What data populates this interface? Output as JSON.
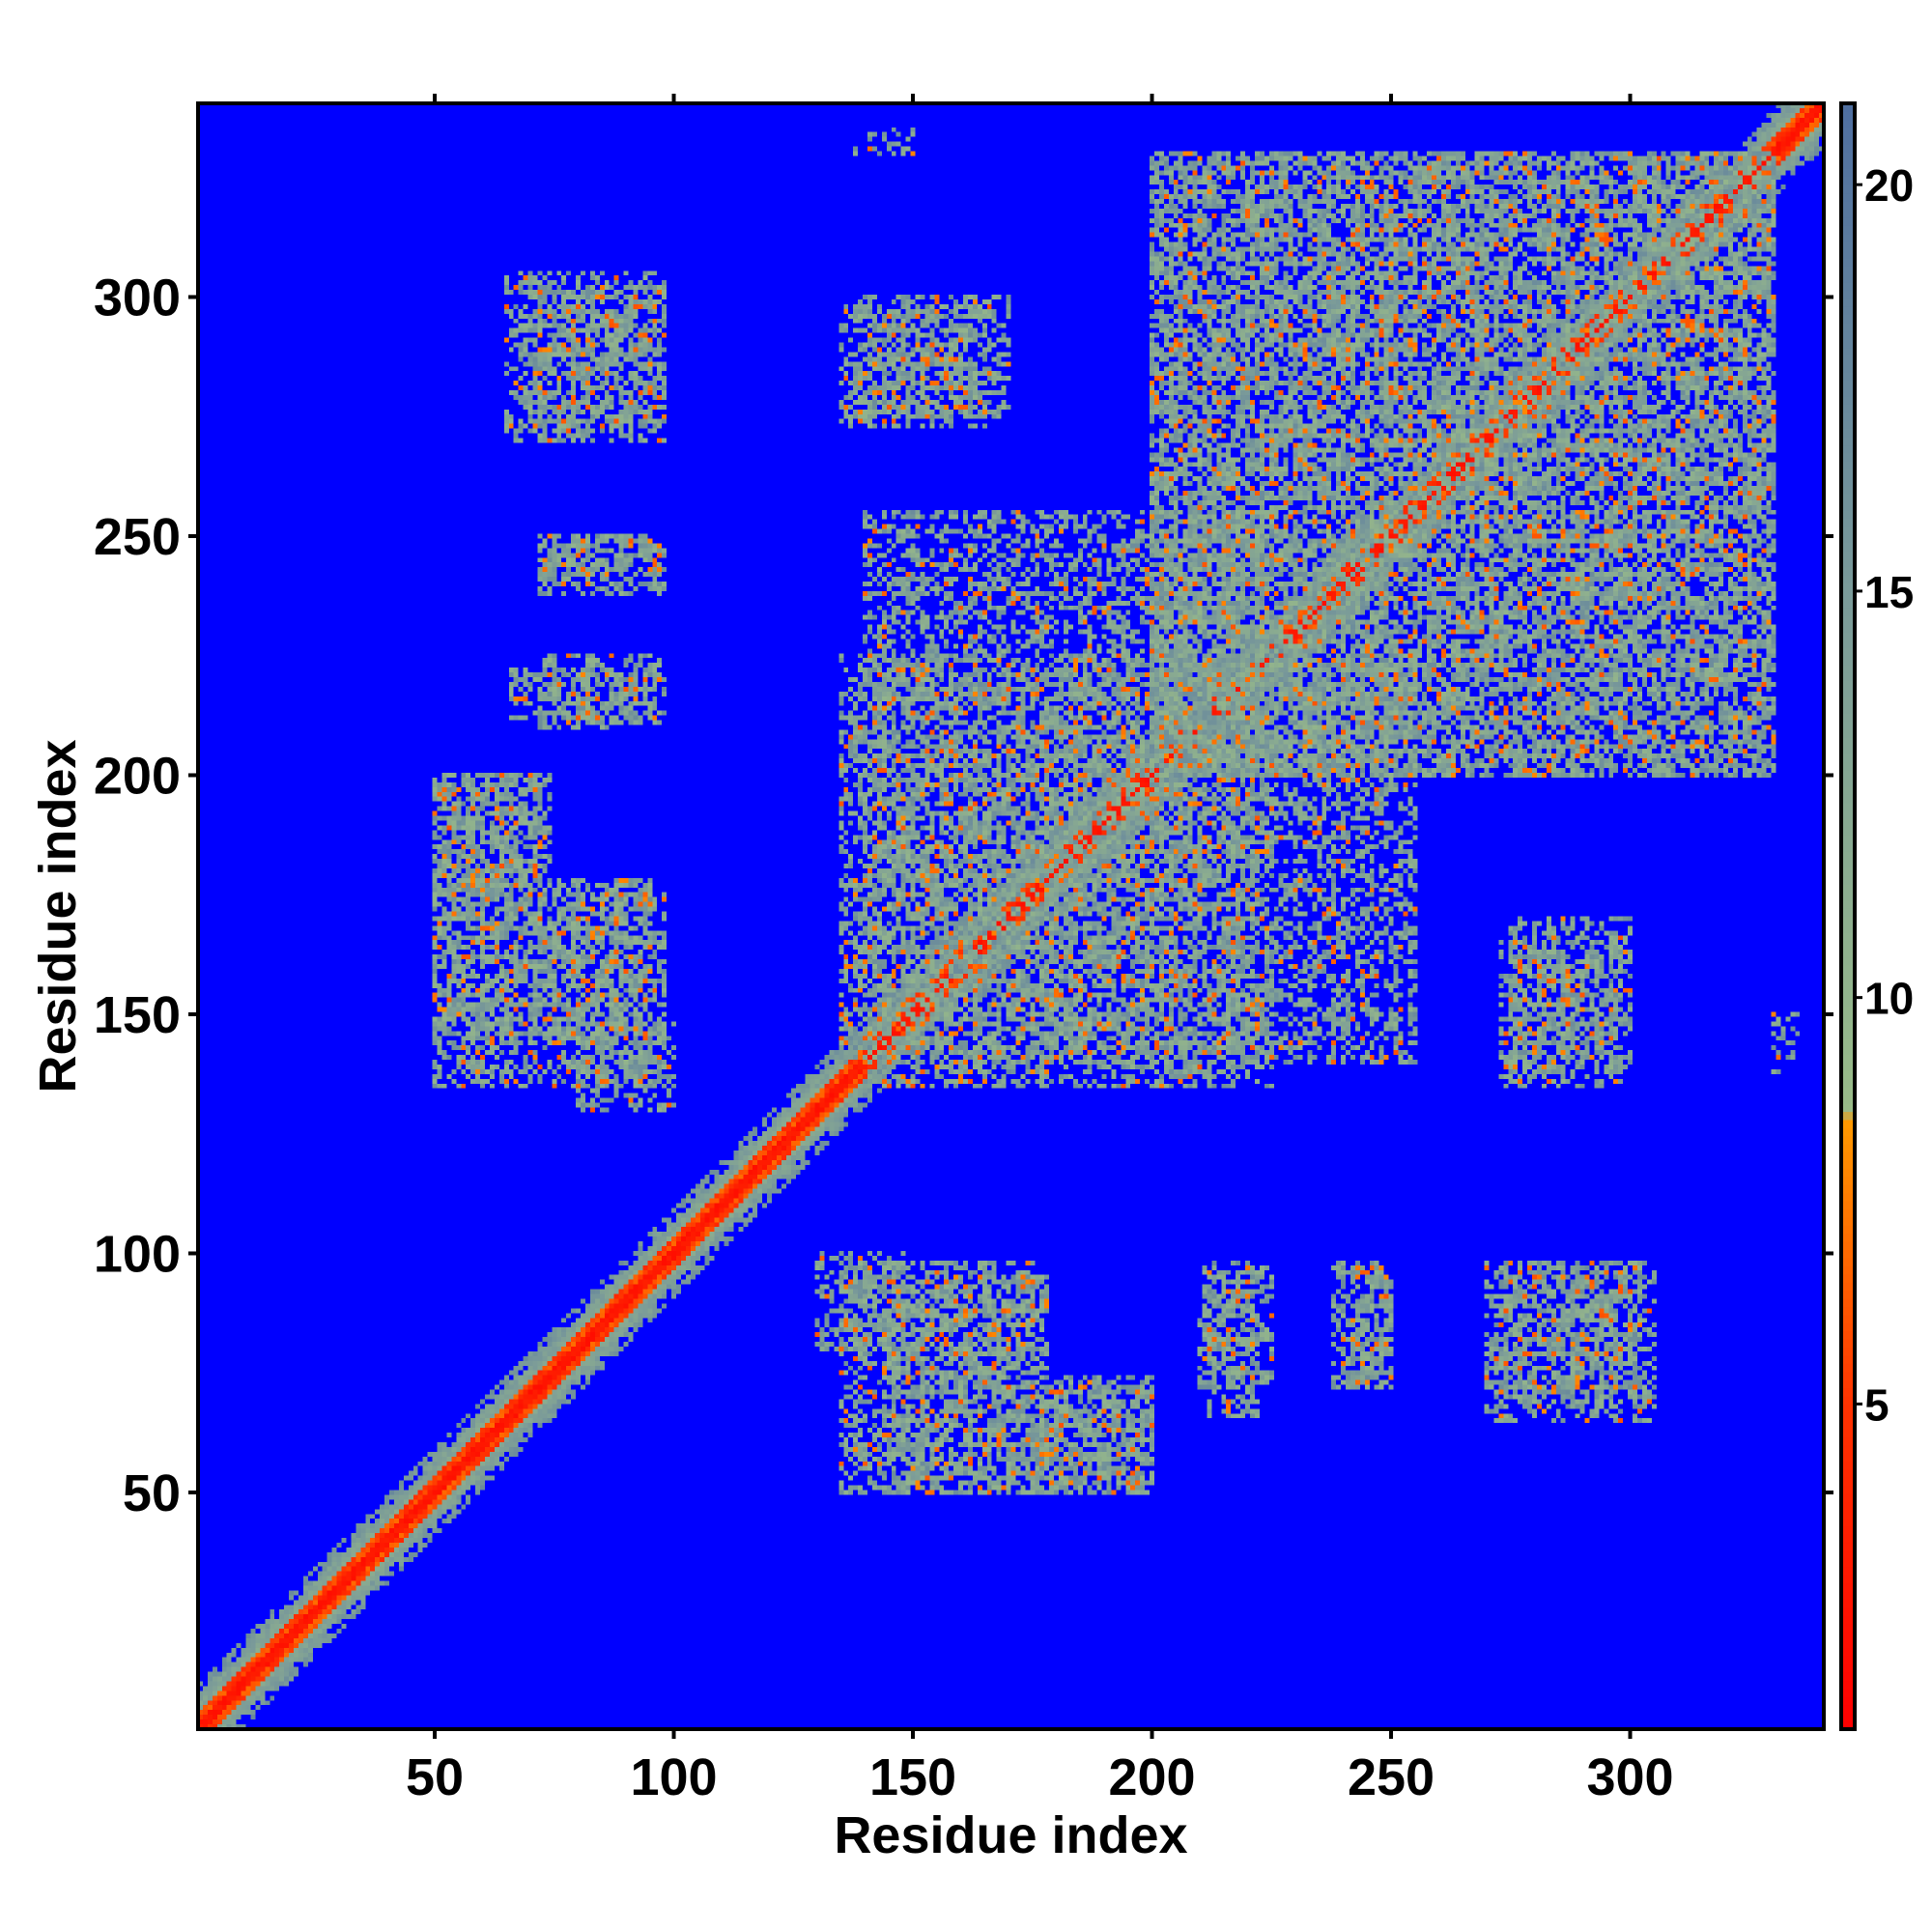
{
  "chart_data": {
    "type": "heatmap",
    "title": "",
    "xlabel": "Residue index",
    "ylabel": "Residue index",
    "n_residues": 340,
    "xlim": [
      1,
      340
    ],
    "ylim": [
      1,
      340
    ],
    "x_ticks": [
      50,
      100,
      150,
      200,
      250,
      300
    ],
    "y_ticks": [
      50,
      100,
      150,
      200,
      250,
      300
    ],
    "colorbar": {
      "ticks": [
        5,
        10,
        15,
        20
      ],
      "range": [
        1,
        21
      ],
      "stops": [
        {
          "value": 1,
          "color": "#ff0000"
        },
        {
          "value": 5,
          "color": "#ff3300"
        },
        {
          "value": 8.5,
          "color": "#ff9900"
        },
        {
          "value": 8.6,
          "color": "#99bb88"
        },
        {
          "value": 15,
          "color": "#7a9a99"
        },
        {
          "value": 21,
          "color": "#4f6fa0"
        }
      ]
    },
    "background_color": "#0000ff",
    "cutoff": 16,
    "contact_regions": [
      {
        "x": [
          1,
          340
        ],
        "y": [
          1,
          340
        ],
        "note": "main diagonal band"
      },
      {
        "x": [
          70,
          98
        ],
        "y": [
          272,
          302
        ]
      },
      {
        "x": [
          72,
          98
        ],
        "y": [
          238,
          250
        ]
      },
      {
        "x": [
          66,
          98
        ],
        "y": [
          212,
          222
        ]
      },
      {
        "x": [
          50,
          74
        ],
        "y": [
          176,
          200
        ]
      },
      {
        "x": [
          50,
          95
        ],
        "y": [
          144,
          178
        ]
      },
      {
        "x": [
          80,
          100
        ],
        "y": [
          130,
          148
        ]
      },
      {
        "x": [
          135,
          165
        ],
        "y": [
          273,
          298
        ]
      },
      {
        "x": [
          140,
          225
        ],
        "y": [
          135,
          255
        ]
      },
      {
        "x": [
          200,
          330
        ],
        "y": [
          200,
          330
        ]
      },
      {
        "x": [
          135,
          175
        ],
        "y": [
          50,
          98
        ]
      },
      {
        "x": [
          175,
          200
        ],
        "y": [
          50,
          72
        ]
      },
      {
        "x": [
          210,
          225
        ],
        "y": [
          72,
          97
        ]
      },
      {
        "x": [
          240,
          250
        ],
        "y": [
          72,
          97
        ]
      },
      {
        "x": [
          270,
          305
        ],
        "y": [
          65,
          98
        ]
      },
      {
        "x": [
          275,
          300
        ],
        "y": [
          138,
          170
        ]
      },
      {
        "x": [
          330,
          335
        ],
        "y": [
          138,
          150
        ]
      }
    ]
  }
}
